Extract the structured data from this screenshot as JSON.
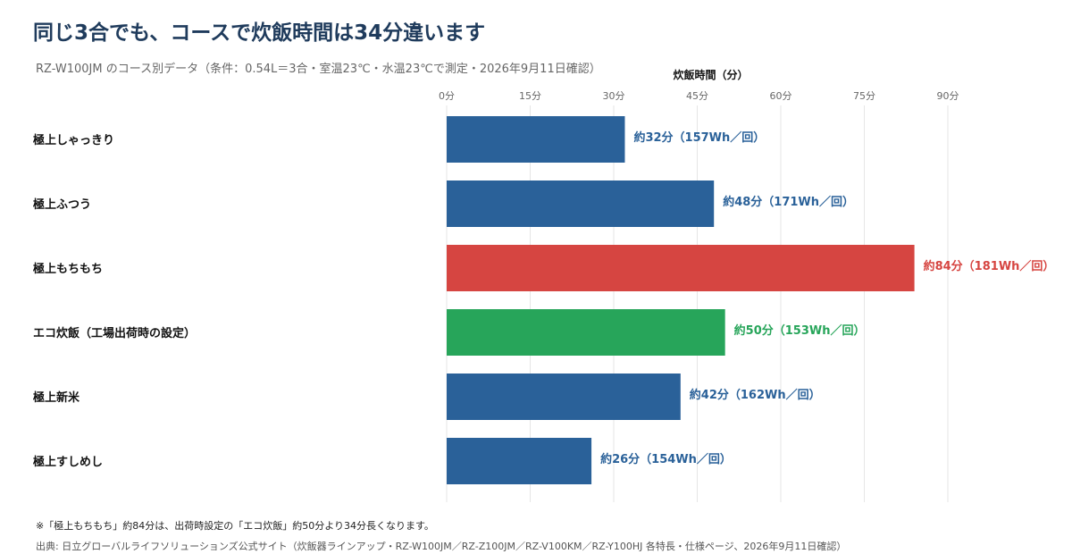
{
  "title": "同じ3合でも、コースで炊飯時間は34分違います",
  "subtitle": "RZ-W100JM のコース別データ（条件：0.54L＝3合・室温23℃・水温23℃で測定・2026年9月11日確認）",
  "note": "※「極上もちもち」約84分は、出荷時設定の「エコ炊飯」約50分より34分長くなります。",
  "source": "出典: 日立グローバルライフソリューションズ公式サイト（炊飯器ラインアップ・RZ-W100JM／RZ-Z100JM／RZ-V100KM／RZ-Y100HJ 各特長・仕様ページ、2026年9月11日確認）",
  "chart_data": {
    "type": "bar",
    "orientation": "horizontal",
    "xlabel": "炊飯時間（分）",
    "xlim": [
      0,
      90
    ],
    "xticks": [
      0,
      15,
      30,
      45,
      60,
      75,
      90
    ],
    "tick_suffix": "分",
    "grid": true,
    "categories": [
      "極上しゃっきり",
      "極上ふつう",
      "極上もちもち",
      "エコ炊飯（工場出荷時の設定）",
      "極上新米",
      "極上すしめし"
    ],
    "values": [
      32,
      48,
      84,
      50,
      42,
      26
    ],
    "energy_wh": [
      157,
      171,
      181,
      153,
      162,
      154
    ],
    "data_labels": [
      "約32分（157Wh／回）",
      "約48分（171Wh／回）",
      "約84分（181Wh／回）",
      "約50分（153Wh／回）",
      "約42分（162Wh／回）",
      "約26分（154Wh／回）"
    ],
    "colors": [
      "#2a6199",
      "#2a6199",
      "#d64541",
      "#27a55a",
      "#2a6199",
      "#2a6199"
    ]
  }
}
